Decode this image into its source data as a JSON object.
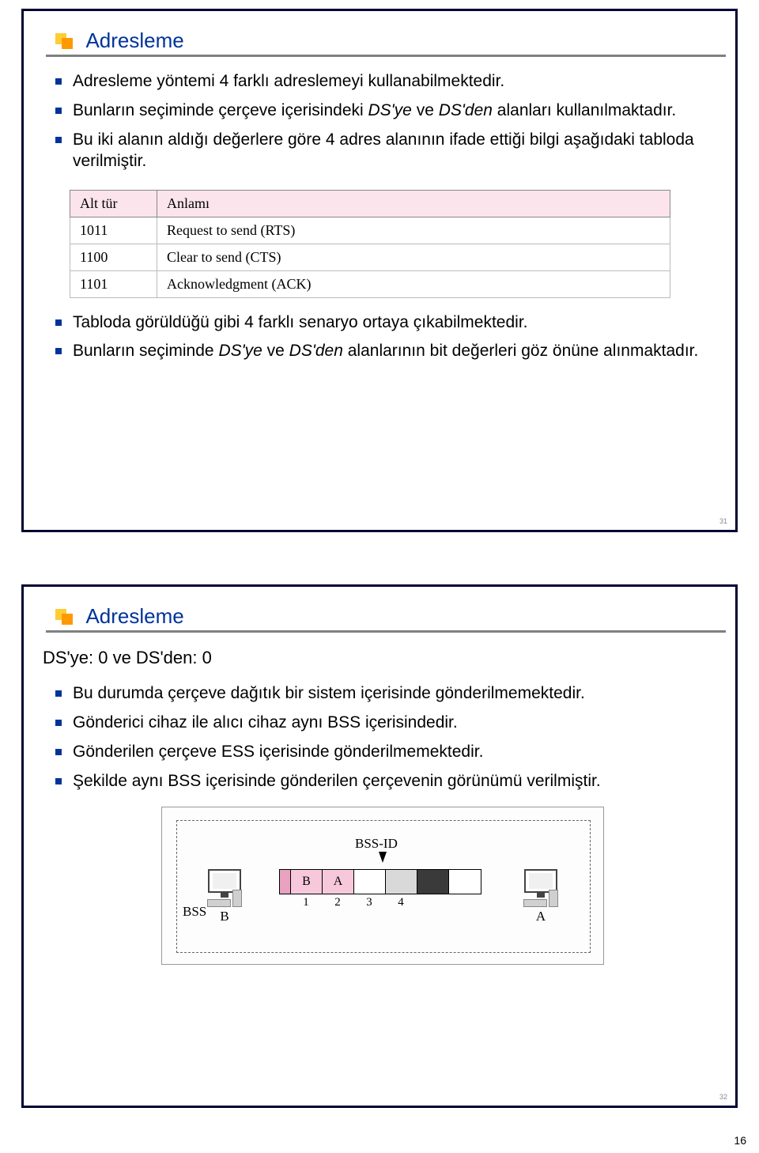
{
  "outer_page_number": "16",
  "slide1": {
    "title": "Adresleme",
    "title_color": "#003399",
    "page_num": "31",
    "bullets_top": [
      {
        "html": "Adresleme yöntemi 4 farklı adreslemeyi kullanabilmektedir."
      },
      {
        "html": "Bunların seçiminde çerçeve içerisindeki <span class='italic'>DS'ye</span> ve <span class='italic'>DS'den</span> alanları kullanılmaktadır."
      },
      {
        "html": "Bu iki alanın aldığı değerlere göre 4 adres alanının ifade ettiği bilgi aşağıdaki tabloda verilmiştir."
      }
    ],
    "table": {
      "header_bg": "#fce4ec",
      "columns": [
        "Alt tür",
        "Anlamı"
      ],
      "rows": [
        [
          "1011",
          "Request to send (RTS)"
        ],
        [
          "1100",
          "Clear to send (CTS)"
        ],
        [
          "1101",
          "Acknowledgment (ACK)"
        ]
      ]
    },
    "bullets_bottom": [
      {
        "html": "Tabloda görüldüğü gibi 4 farklı senaryo ortaya çıkabilmektedir."
      },
      {
        "html": "Bunların seçiminde <span class='italic'>DS'ye</span> ve <span class='italic'>DS'den</span> alanlarının bit değerleri göz önüne alınmaktadır."
      }
    ]
  },
  "slide2": {
    "title": "Adresleme",
    "title_color": "#003399",
    "page_num": "32",
    "heading": "DS'ye: 0 ve DS'den: 0",
    "bullets": [
      {
        "html": "Bu durumda çerçeve dağıtık bir sistem içerisinde gönderilmemektedir."
      },
      {
        "html": "Gönderici cihaz ile alıcı cihaz aynı BSS içerisindedir."
      },
      {
        "html": "Gönderilen çerçeve ESS içerisinde gönderilmemektedir."
      },
      {
        "html": "Şekilde aynı BSS içerisinde gönderilen çerçevenin görünümü verilmiştir."
      }
    ],
    "diagram": {
      "bss_label": "BSS",
      "bssid_label": "BSS-ID",
      "left_pc": "B",
      "right_pc": "A",
      "frame_cells": [
        "",
        "B",
        "A",
        "",
        "",
        "",
        ""
      ],
      "frame_nums": [
        "",
        "1",
        "2",
        "3",
        "4",
        "",
        ""
      ],
      "colors": {
        "pink_light": "#f7c8da",
        "pink_dark": "#e8a2c0",
        "grey": "#d9d9d9",
        "dark": "#3a3a3a"
      }
    }
  }
}
